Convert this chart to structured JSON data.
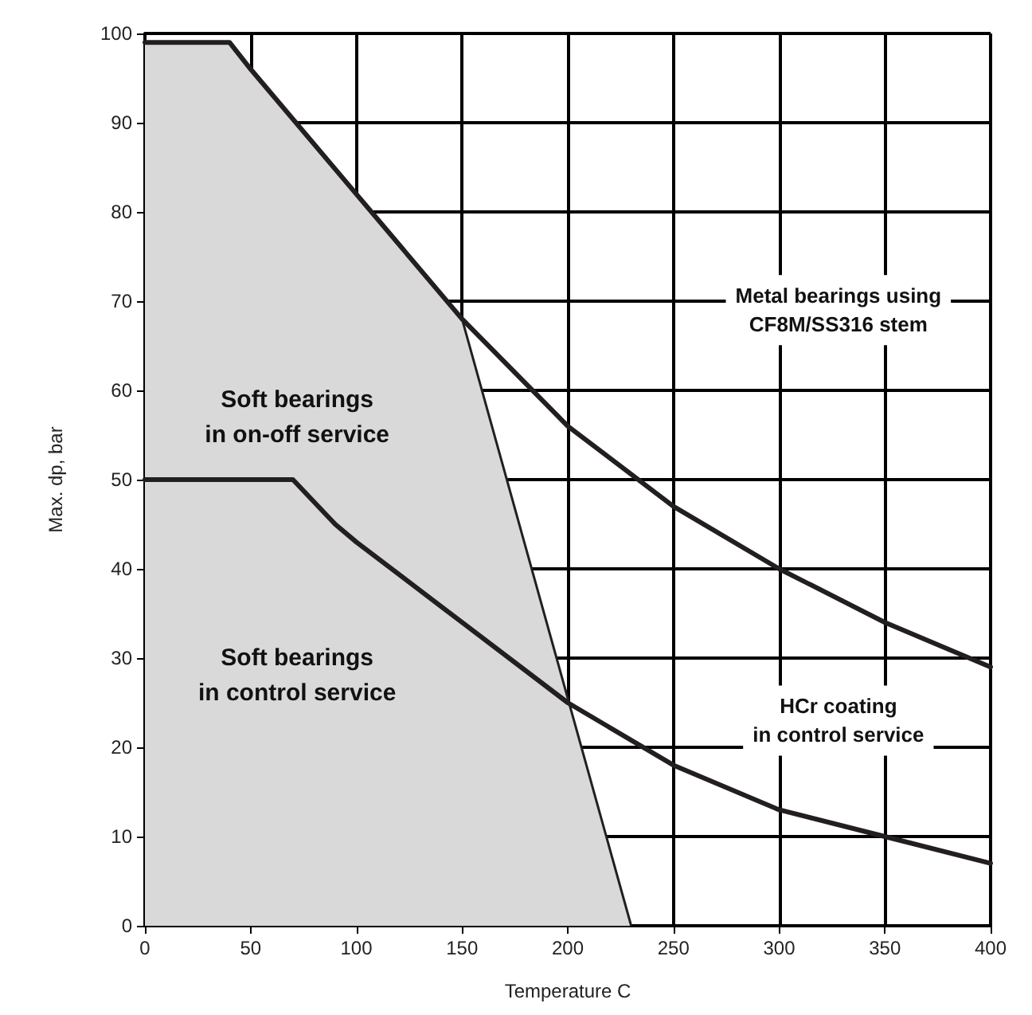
{
  "chart_data": {
    "type": "line",
    "xlabel": "Temperature C",
    "ylabel": "Max. dp, bar",
    "xlim": [
      0,
      400
    ],
    "xticks": [
      0,
      50,
      100,
      150,
      200,
      250,
      300,
      350,
      400
    ],
    "ylim": [
      0,
      100
    ],
    "yticks": [
      0,
      10,
      20,
      30,
      40,
      50,
      60,
      70,
      80,
      90,
      100
    ],
    "grid": true,
    "marker": "none",
    "line_style": "solid",
    "series": [
      {
        "type": "area",
        "color": "#d9d9d9",
        "x": [
          0,
          40,
          50,
          100,
          150,
          230
        ],
        "values": [
          99,
          99,
          96,
          82,
          68,
          0
        ]
      },
      {
        "color": "#231f20",
        "x": [
          0,
          40,
          50,
          100,
          150,
          200,
          250,
          300,
          350,
          400
        ],
        "values": [
          99,
          99,
          96,
          82,
          68,
          56,
          47,
          40,
          34,
          29
        ]
      },
      {
        "color": "#231f20",
        "x": [
          0,
          70,
          90,
          100,
          150,
          200,
          250,
          300,
          350,
          400
        ],
        "values": [
          50,
          50,
          45,
          43,
          34,
          25,
          18,
          13,
          10,
          7
        ]
      }
    ],
    "annotations": [
      "Soft bearings\nin on-off service",
      "Soft bearings\nin control service",
      "Metal bearings using\nCF8M/SS316 stem",
      "HCr coating\nin control service"
    ]
  }
}
